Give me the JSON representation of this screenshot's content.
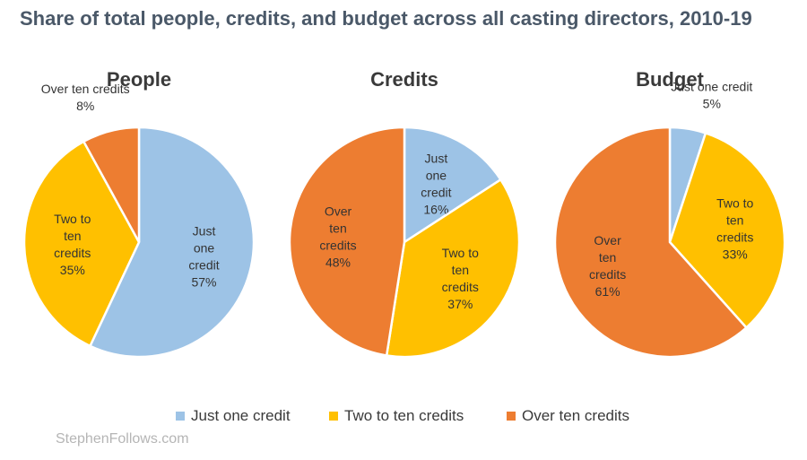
{
  "title": "Share of total people, credits, and budget across all casting directors, 2010-19",
  "watermark": "StephenFollows.com",
  "colors": {
    "Just one credit": "#9dc3e6",
    "Two to ten credits": "#ffc000",
    "Over ten credits": "#ed7d31",
    "text": "#333333",
    "title": "#4a5868"
  },
  "legend": {
    "position": "bottom",
    "items": [
      "Just one credit",
      "Two to ten credits",
      "Over ten credits"
    ]
  },
  "chart_data": [
    {
      "type": "pie",
      "title": "People",
      "slices": [
        {
          "name": "Just one credit",
          "value": 57,
          "label": [
            "Just",
            "one",
            "credit",
            "57%"
          ],
          "placement": "inside"
        },
        {
          "name": "Two to ten credits",
          "value": 35,
          "label": [
            "Two to",
            "ten",
            "credits",
            "35%"
          ],
          "placement": "inside"
        },
        {
          "name": "Over ten credits",
          "value": 8,
          "label": [
            "Over ten credits",
            "8%"
          ],
          "placement": "outside"
        }
      ]
    },
    {
      "type": "pie",
      "title": "Credits",
      "slices": [
        {
          "name": "Just one credit",
          "value": 16,
          "label": [
            "Just",
            "one",
            "credit",
            "16%"
          ],
          "placement": "inside"
        },
        {
          "name": "Two to ten credits",
          "value": 37,
          "label": [
            "Two to",
            "ten",
            "credits",
            "37%"
          ],
          "placement": "inside"
        },
        {
          "name": "Over ten credits",
          "value": 48,
          "label": [
            "Over",
            "ten",
            "credits",
            "48%"
          ],
          "placement": "inside"
        }
      ]
    },
    {
      "type": "pie",
      "title": "Budget",
      "slices": [
        {
          "name": "Just one credit",
          "value": 5,
          "label": [
            "Just one credit",
            "5%"
          ],
          "placement": "outside"
        },
        {
          "name": "Two to ten credits",
          "value": 33,
          "label": [
            "Two to",
            "ten",
            "credits",
            "33%"
          ],
          "placement": "inside"
        },
        {
          "name": "Over ten credits",
          "value": 61,
          "label": [
            "Over",
            "ten",
            "credits",
            "61%"
          ],
          "placement": "inside"
        }
      ]
    }
  ]
}
